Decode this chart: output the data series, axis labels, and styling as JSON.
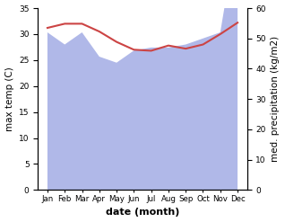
{
  "months": [
    "Jan",
    "Feb",
    "Mar",
    "Apr",
    "May",
    "Jun",
    "Jul",
    "Aug",
    "Sep",
    "Oct",
    "Nov",
    "Dec"
  ],
  "temperature": [
    31.2,
    32.0,
    32.0,
    30.5,
    28.5,
    27.0,
    26.8,
    27.8,
    27.2,
    28.0,
    30.0,
    32.2
  ],
  "precipitation": [
    52,
    48,
    52,
    44,
    42,
    46,
    47,
    47,
    48,
    50,
    52,
    86
  ],
  "temp_color": "#cc4444",
  "precip_color": "#b0b8e8",
  "ylim_left": [
    0,
    35
  ],
  "ylim_right": [
    0,
    60
  ],
  "ylabel_left": "max temp (C)",
  "ylabel_right": "med. precipitation (kg/m2)",
  "xlabel": "date (month)",
  "background_color": "#ffffff",
  "fig_width": 3.18,
  "fig_height": 2.47,
  "dpi": 100
}
